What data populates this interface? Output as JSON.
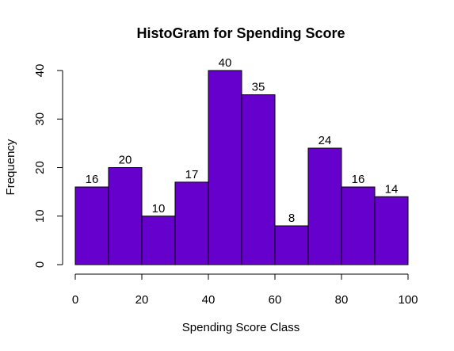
{
  "chart_data": {
    "type": "bar",
    "title": "HistoGram for Spending Score",
    "xlabel": "Spending Score Class",
    "ylabel": "Frequency",
    "bin_edges": [
      0,
      10,
      20,
      30,
      40,
      50,
      60,
      70,
      80,
      90,
      100
    ],
    "values": [
      16,
      20,
      10,
      17,
      40,
      35,
      8,
      24,
      16,
      14
    ],
    "data_labels": [
      "16",
      "20",
      "10",
      "17",
      "40",
      "35",
      "8",
      "24",
      "16",
      "14"
    ],
    "xlim": [
      0,
      100
    ],
    "ylim": [
      0,
      40
    ],
    "x_ticks": [
      0,
      20,
      40,
      60,
      80,
      100
    ],
    "x_tick_labels": [
      "0",
      "20",
      "40",
      "60",
      "80",
      "100"
    ],
    "y_ticks": [
      0,
      10,
      20,
      30,
      40
    ],
    "y_tick_labels": [
      "0",
      "10",
      "20",
      "30",
      "40"
    ],
    "bar_color": "#6600cc",
    "grid": false,
    "legend": "none"
  }
}
